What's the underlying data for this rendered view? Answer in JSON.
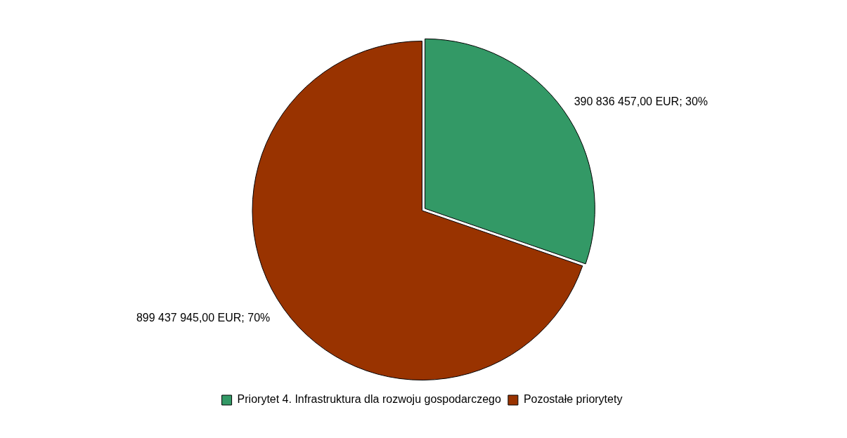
{
  "chart_data": {
    "type": "pie",
    "categories": [
      "Priorytet 4. Infrastruktura dla rozwoju gospodarczego",
      "Pozostałe priorytety"
    ],
    "values": [
      390836457,
      899437945
    ],
    "colors": [
      "#339966",
      "#993300"
    ],
    "value_labels": [
      "390 836 457,00 EUR; 30%",
      "899 437 945,00 EUR; 70%"
    ],
    "legend": "bottom"
  }
}
